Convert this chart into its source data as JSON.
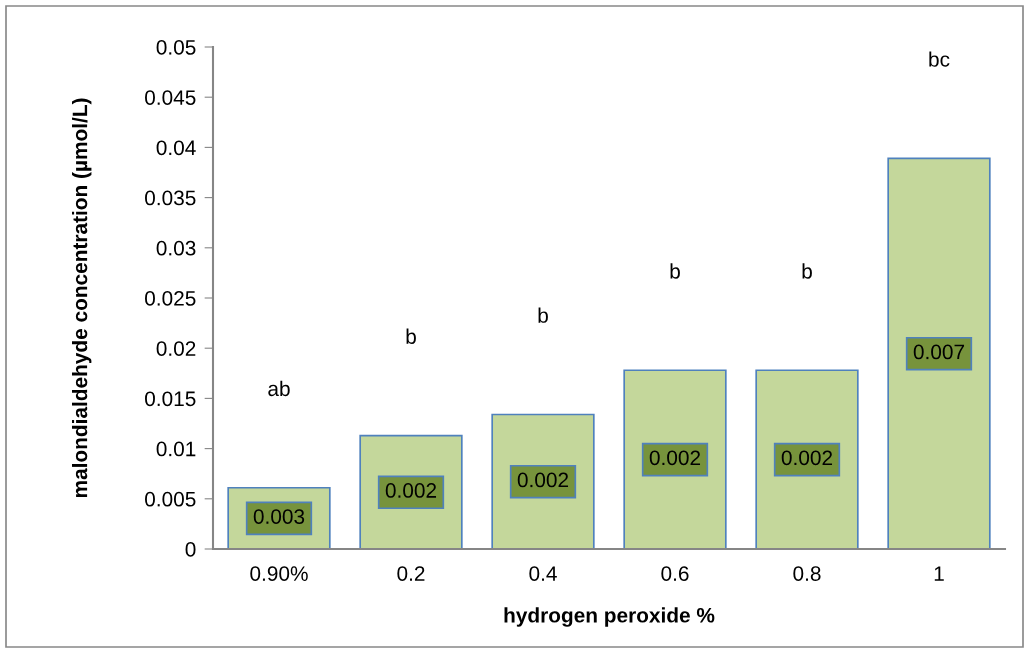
{
  "chart_data": {
    "type": "bar",
    "xlabel": "hydrogen peroxide %",
    "ylabel": "malondialdehyde concentration (µmol/L)",
    "categories": [
      "0.90%",
      "0.2",
      "0.4",
      "0.6",
      "0.8",
      "1"
    ],
    "values": [
      0.0061,
      0.0113,
      0.0134,
      0.0178,
      0.0178,
      0.0389
    ],
    "color": "#c4d79b",
    "ylim": [
      0,
      0.05
    ],
    "yticks": [
      0,
      0.005,
      0.01,
      0.015,
      0.02,
      0.025,
      0.03,
      0.035,
      0.04,
      0.045,
      0.05
    ],
    "grid": false,
    "annotations": [
      "0.003",
      "0.002",
      "0.002",
      "0.002",
      "0.002",
      "0.007",
      "ab",
      "b",
      "b",
      "b",
      "b",
      "bc"
    ]
  }
}
